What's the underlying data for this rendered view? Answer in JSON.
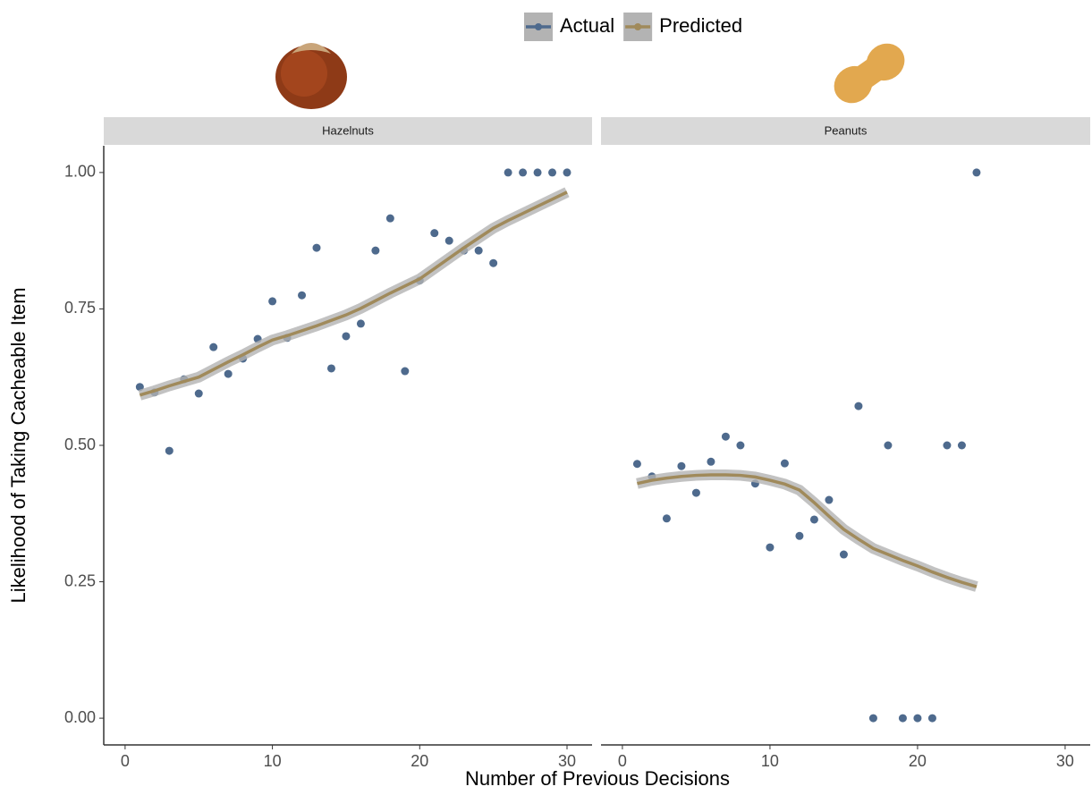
{
  "chart_data": [
    {
      "type": "scatter",
      "title": "Hazelnuts",
      "ylabel": "Likelihood of Taking Cacheable Item",
      "xlabel": "Number of Previous Decisions",
      "x": [
        1,
        2,
        3,
        4,
        5,
        6,
        7,
        8,
        9,
        10,
        11,
        12,
        13,
        14,
        15,
        16,
        17,
        18,
        19,
        20,
        21,
        22,
        23,
        24,
        25,
        26,
        27,
        28,
        29,
        30
      ],
      "series": [
        {
          "name": "Actual",
          "color": "#4e6a8d",
          "mode": "markers",
          "values": [
            0.607,
            0.597,
            0.49,
            0.621,
            0.595,
            0.68,
            0.631,
            0.659,
            0.695,
            0.764,
            0.697,
            0.775,
            0.862,
            0.641,
            0.7,
            0.723,
            0.857,
            0.916,
            0.636,
            0.802,
            0.889,
            0.875,
            0.857,
            0.857,
            0.834,
            1,
            1,
            1,
            1,
            1
          ]
        },
        {
          "name": "Predicted",
          "color": "#a08a5b",
          "mode": "line",
          "values": [
            0.592,
            0.6,
            0.609,
            0.617,
            0.625,
            0.639,
            0.653,
            0.666,
            0.68,
            0.693,
            0.701,
            0.71,
            0.719,
            0.729,
            0.739,
            0.751,
            0.765,
            0.779,
            0.792,
            0.805,
            0.824,
            0.843,
            0.862,
            0.88,
            0.898,
            0.912,
            0.925,
            0.938,
            0.951,
            0.964
          ]
        }
      ],
      "xlim": [
        -1.45,
        31.7
      ],
      "xticks": [
        0,
        10,
        20,
        30
      ],
      "ylim": [
        -0.049,
        1.049
      ],
      "yticks": [
        {
          "value": 0,
          "label": "0.00"
        },
        {
          "value": 0.25,
          "label": "0.25"
        },
        {
          "value": 0.5,
          "label": "0.50"
        },
        {
          "value": 0.75,
          "label": "0.75"
        },
        {
          "value": 1,
          "label": "1.00"
        }
      ]
    },
    {
      "type": "scatter",
      "title": "Peanuts",
      "x": [
        1,
        2,
        3,
        4,
        5,
        6,
        7,
        8,
        9,
        10,
        11,
        12,
        13,
        14,
        15,
        16,
        17,
        18,
        19,
        20,
        21,
        22,
        23,
        24
      ],
      "series": [
        {
          "name": "Actual",
          "color": "#4e6a8d",
          "mode": "markers",
          "values": [
            0.466,
            0.443,
            0.366,
            0.462,
            0.413,
            0.47,
            0.516,
            0.5,
            0.43,
            0.313,
            0.467,
            0.334,
            0.364,
            0.4,
            0.3,
            0.572,
            0,
            0.5,
            0,
            0,
            0,
            0.5,
            0.5,
            1
          ]
        },
        {
          "name": "Predicted",
          "color": "#a08a5b",
          "mode": "line",
          "values": [
            0.43,
            0.436,
            0.44,
            0.443,
            0.445,
            0.446,
            0.446,
            0.445,
            0.442,
            0.436,
            0.429,
            0.418,
            0.395,
            0.37,
            0.346,
            0.328,
            0.311,
            0.3,
            0.289,
            0.279,
            0.268,
            0.258,
            0.249,
            0.241
          ]
        }
      ],
      "xlim": [
        -1.45,
        31.7
      ],
      "xticks": [
        0,
        10,
        20,
        30
      ],
      "ylim": [
        -0.049,
        1.049
      ]
    }
  ]
}
